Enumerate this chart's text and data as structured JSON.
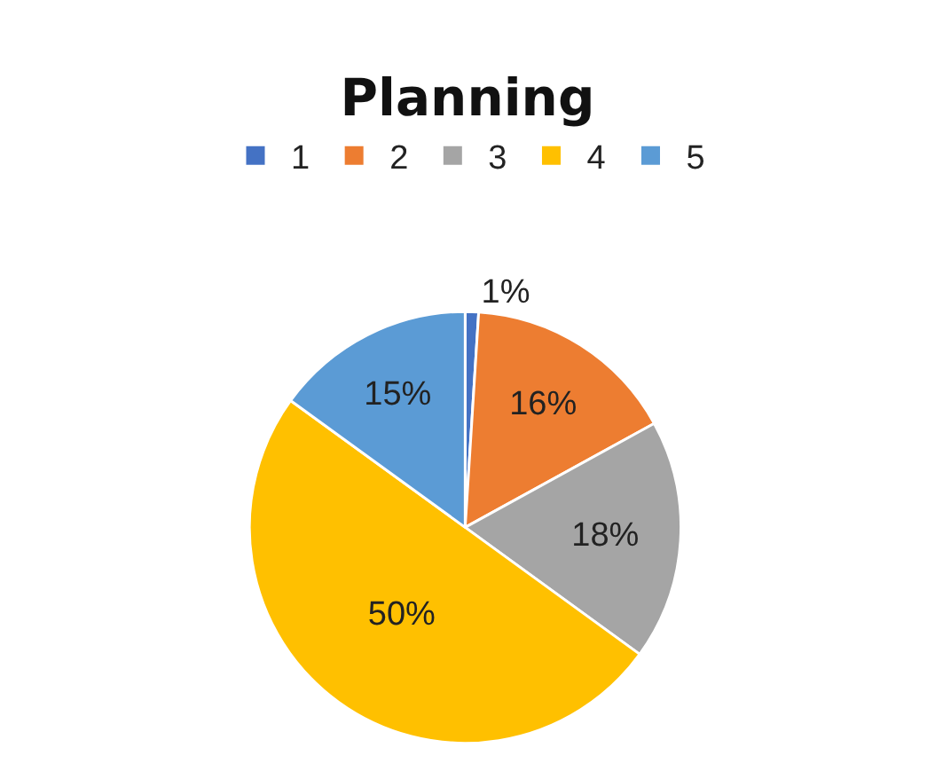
{
  "chart_data": {
    "type": "pie",
    "title": "Planning",
    "categories": [
      "1",
      "2",
      "3",
      "4",
      "5"
    ],
    "values": [
      1,
      16,
      18,
      50,
      15
    ],
    "value_labels": [
      "1%",
      "16%",
      "18%",
      "50%",
      "15%"
    ],
    "colors": [
      "#4472c4",
      "#ed7d31",
      "#a5a5a5",
      "#ffc000",
      "#5b9bd5"
    ],
    "legend": "top"
  }
}
